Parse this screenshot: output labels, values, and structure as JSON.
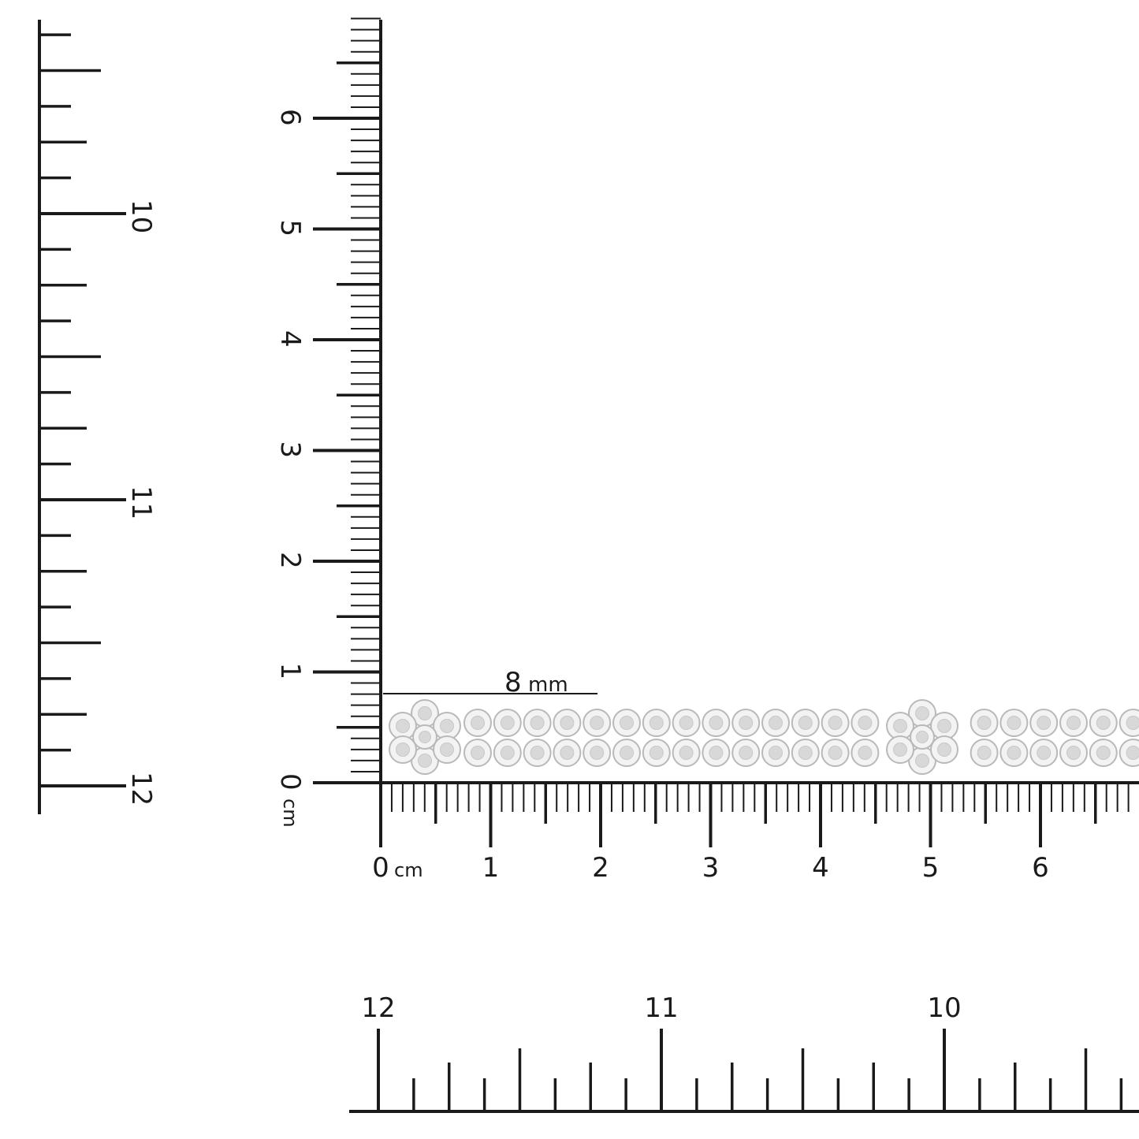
{
  "vertical_cm_ruler": {
    "labels": [
      "0",
      "1",
      "2",
      "3",
      "4",
      "5",
      "6"
    ],
    "unit": "cm"
  },
  "horizontal_cm_ruler": {
    "labels": [
      "0",
      "1",
      "2",
      "3",
      "4",
      "5",
      "6"
    ],
    "unit": "cm"
  },
  "left_inch_ruler": {
    "labels": [
      "10",
      "11",
      "12"
    ]
  },
  "bottom_inch_ruler": {
    "labels": [
      "12",
      "11",
      "10"
    ]
  },
  "width_annotation": {
    "value": "8",
    "unit": "mm"
  },
  "colors": {
    "ink": "#1a1a1a",
    "metal": "#d8d8d8"
  }
}
